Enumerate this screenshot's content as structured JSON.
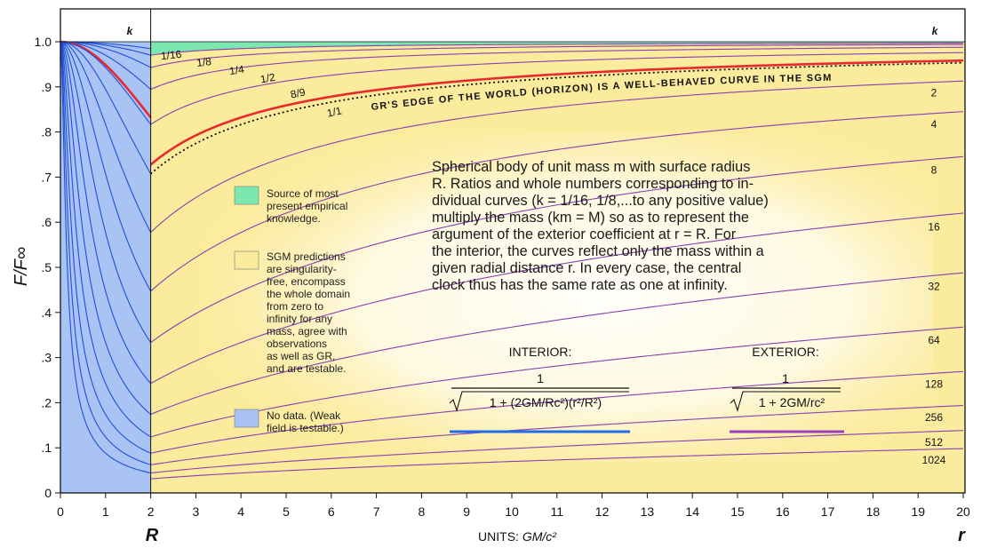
{
  "chart_data": {
    "type": "line",
    "title": "",
    "ylabel": "F/F∞",
    "xlabel_left": "R",
    "xlabel_right": "r",
    "units_prefix": "UNITS: ",
    "units_value": "GM/c²",
    "xlim": [
      0,
      20
    ],
    "ylim": [
      0,
      1
    ],
    "x_ticks": [
      "0",
      "1",
      "2",
      "3",
      "4",
      "5",
      "6",
      "7",
      "8",
      "9",
      "10",
      "11",
      "12",
      "13",
      "14",
      "15",
      "16",
      "17",
      "18",
      "19",
      "20"
    ],
    "y_ticks": [
      "0",
      ".1",
      ".2",
      ".3",
      ".4",
      ".5",
      ".6",
      ".7",
      ".8",
      ".9",
      "1.0"
    ],
    "surface_radius": 2,
    "k_header_left": "k",
    "k_header_right": "k",
    "k_values": [
      0.0625,
      0.125,
      0.25,
      0.5,
      0.8889,
      1,
      2,
      4,
      8,
      16,
      32,
      64,
      128,
      256,
      512,
      1024
    ],
    "k_labels_left": [
      "1/16",
      "1/8",
      "1/4",
      "1/2",
      "8/9",
      "1/1"
    ],
    "k_labels_right": [
      "2",
      "4",
      "8",
      "16",
      "32",
      "64",
      "128",
      "256",
      "512",
      "1024"
    ],
    "interior_formula": "1 / sqrt(1 + (2GM/Rc²)(r²/R²))",
    "exterior_formula": "1 / sqrt(1 + 2GM/rc²)",
    "highlighted_curve_k": 0.8889,
    "horizon_curve_k": 1,
    "interior_color": "#1f4fd6",
    "exterior_color": "#8a3fb0",
    "highlight_color": "#e8292e",
    "horizon_label": "GR'S EDGE OF THE WORLD (HORIZON) IS A WELL-BEHAVED CURVE IN THE SGM",
    "colors": {
      "empirical": "#7ce8b0",
      "prediction": "#fbeb9c",
      "nodata": "#a9c3f5"
    }
  },
  "description": [
    "Spherical body of unit mass m with surface radius",
    "R.  Ratios and whole numbers corresponding to in-",
    "dividual curves (k = 1/16, 1/8,...to any positive value)",
    "multiply the mass (km = M) so as to represent the",
    "argument of the exterior coefficient at r = R.  For",
    "the interior, the curves reflect only the mass within a",
    "given radial distance r.  In every case, the central",
    "clock thus has the same rate as one at infinity."
  ],
  "legend": {
    "empirical": [
      "Source of most",
      "present empirical",
      "knowledge."
    ],
    "prediction": [
      "SGM predictions",
      "are singularity-",
      "free, encompass",
      "the whole domain",
      "from zero to",
      "infinity for any",
      "mass, agree with",
      "observations",
      "as well as GR,",
      "and are testable."
    ],
    "nodata": [
      "No data. (Weak",
      "field is testable.)"
    ]
  },
  "formulas": {
    "interior_title": "INTERIOR:",
    "exterior_title": "EXTERIOR:",
    "numerator": "1",
    "interior_expr": "1 + (2GM/Rc²)(r²/R²)",
    "exterior_expr": "1 + 2GM/rc²"
  }
}
